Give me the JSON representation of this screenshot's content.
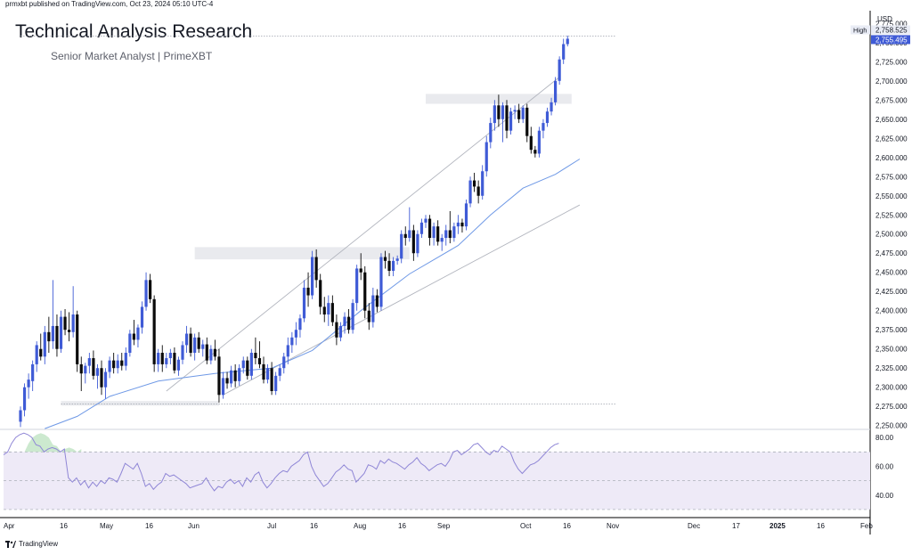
{
  "header": {
    "published": "prmxbt published on TradingView.com, Oct 23, 2024 05:10 UTC-4",
    "title": "Technical Analysis Research",
    "subtitle": "Senior Market Analyst | PrimeXBT"
  },
  "footer": {
    "brand": "TradingView"
  },
  "colors": {
    "up": "#3f5bd6",
    "down": "#0a0a0a",
    "ma": "#6f99e6",
    "trend": "#b2b5be",
    "rsi": "#8f86d6",
    "rsi_band": "#eeeaf7",
    "zone": "#e9eaee"
  },
  "chart_data": [
    {
      "type": "candlestick",
      "currency": "USD",
      "ylim": [
        2245,
        2780
      ],
      "y_ticks": [
        "2,250.000",
        "2,275.000",
        "2,300.000",
        "2,325.000",
        "2,350.000",
        "2,375.000",
        "2,400.000",
        "2,425.000",
        "2,450.000",
        "2,475.000",
        "2,500.000",
        "2,525.000",
        "2,550.000",
        "2,575.000",
        "2,600.000",
        "2,625.000",
        "2,650.000",
        "2,675.000",
        "2,700.000",
        "2,725.000",
        "2,750.000",
        "2,775.000"
      ],
      "x_ticks": [
        "Apr",
        "16",
        "May",
        "16",
        "Jun",
        "Jul",
        "16",
        "Aug",
        "16",
        "Sep",
        "Oct",
        "16",
        "Nov",
        "Dec",
        "17",
        "2025",
        "16",
        "Feb"
      ],
      "high_label": "High",
      "high_value": "2,758.525",
      "last_value": "2,755.495",
      "candles": [
        {
          "o": 2255,
          "h": 2275,
          "l": 2248,
          "c": 2270
        },
        {
          "o": 2270,
          "h": 2305,
          "l": 2262,
          "c": 2300
        },
        {
          "o": 2300,
          "h": 2318,
          "l": 2285,
          "c": 2310
        },
        {
          "o": 2308,
          "h": 2335,
          "l": 2295,
          "c": 2330
        },
        {
          "o": 2330,
          "h": 2360,
          "l": 2320,
          "c": 2355
        },
        {
          "o": 2350,
          "h": 2370,
          "l": 2335,
          "c": 2340
        },
        {
          "o": 2340,
          "h": 2380,
          "l": 2330,
          "c": 2372
        },
        {
          "o": 2372,
          "h": 2392,
          "l": 2345,
          "c": 2360
        },
        {
          "o": 2360,
          "h": 2440,
          "l": 2350,
          "c": 2380
        },
        {
          "o": 2380,
          "h": 2395,
          "l": 2340,
          "c": 2350
        },
        {
          "o": 2350,
          "h": 2400,
          "l": 2345,
          "c": 2392
        },
        {
          "o": 2392,
          "h": 2402,
          "l": 2368,
          "c": 2375
        },
        {
          "o": 2375,
          "h": 2398,
          "l": 2360,
          "c": 2372
        },
        {
          "o": 2372,
          "h": 2432,
          "l": 2365,
          "c": 2395
        },
        {
          "o": 2395,
          "h": 2400,
          "l": 2320,
          "c": 2330
        },
        {
          "o": 2330,
          "h": 2340,
          "l": 2295,
          "c": 2318
        },
        {
          "o": 2318,
          "h": 2332,
          "l": 2305,
          "c": 2328
        },
        {
          "o": 2328,
          "h": 2345,
          "l": 2318,
          "c": 2338
        },
        {
          "o": 2338,
          "h": 2348,
          "l": 2310,
          "c": 2315
        },
        {
          "o": 2315,
          "h": 2330,
          "l": 2298,
          "c": 2325
        },
        {
          "o": 2325,
          "h": 2335,
          "l": 2290,
          "c": 2300
        },
        {
          "o": 2300,
          "h": 2325,
          "l": 2285,
          "c": 2320
        },
        {
          "o": 2320,
          "h": 2340,
          "l": 2312,
          "c": 2335
        },
        {
          "o": 2335,
          "h": 2345,
          "l": 2318,
          "c": 2325
        },
        {
          "o": 2325,
          "h": 2343,
          "l": 2318,
          "c": 2335
        },
        {
          "o": 2335,
          "h": 2345,
          "l": 2322,
          "c": 2328
        },
        {
          "o": 2328,
          "h": 2352,
          "l": 2322,
          "c": 2345
        },
        {
          "o": 2345,
          "h": 2375,
          "l": 2340,
          "c": 2370
        },
        {
          "o": 2370,
          "h": 2388,
          "l": 2355,
          "c": 2362
        },
        {
          "o": 2362,
          "h": 2382,
          "l": 2352,
          "c": 2378
        },
        {
          "o": 2378,
          "h": 2412,
          "l": 2370,
          "c": 2405
        },
        {
          "o": 2405,
          "h": 2450,
          "l": 2400,
          "c": 2440
        },
        {
          "o": 2440,
          "h": 2448,
          "l": 2410,
          "c": 2415
        },
        {
          "o": 2415,
          "h": 2420,
          "l": 2320,
          "c": 2330
        },
        {
          "o": 2330,
          "h": 2350,
          "l": 2320,
          "c": 2345
        },
        {
          "o": 2345,
          "h": 2355,
          "l": 2320,
          "c": 2330
        },
        {
          "o": 2330,
          "h": 2345,
          "l": 2325,
          "c": 2338
        },
        {
          "o": 2338,
          "h": 2350,
          "l": 2330,
          "c": 2345
        },
        {
          "o": 2345,
          "h": 2352,
          "l": 2318,
          "c": 2322
        },
        {
          "o": 2322,
          "h": 2340,
          "l": 2315,
          "c": 2336
        },
        {
          "o": 2336,
          "h": 2360,
          "l": 2330,
          "c": 2355
        },
        {
          "o": 2355,
          "h": 2380,
          "l": 2345,
          "c": 2370
        },
        {
          "o": 2370,
          "h": 2378,
          "l": 2340,
          "c": 2345
        },
        {
          "o": 2345,
          "h": 2370,
          "l": 2335,
          "c": 2365
        },
        {
          "o": 2365,
          "h": 2372,
          "l": 2345,
          "c": 2350
        },
        {
          "o": 2350,
          "h": 2362,
          "l": 2340,
          "c": 2356
        },
        {
          "o": 2356,
          "h": 2365,
          "l": 2330,
          "c": 2335
        },
        {
          "o": 2335,
          "h": 2355,
          "l": 2330,
          "c": 2350
        },
        {
          "o": 2350,
          "h": 2362,
          "l": 2335,
          "c": 2340
        },
        {
          "o": 2340,
          "h": 2350,
          "l": 2280,
          "c": 2290
        },
        {
          "o": 2290,
          "h": 2320,
          "l": 2285,
          "c": 2312
        },
        {
          "o": 2312,
          "h": 2320,
          "l": 2298,
          "c": 2305
        },
        {
          "o": 2305,
          "h": 2328,
          "l": 2300,
          "c": 2322
        },
        {
          "o": 2322,
          "h": 2330,
          "l": 2300,
          "c": 2308
        },
        {
          "o": 2308,
          "h": 2330,
          "l": 2302,
          "c": 2325
        },
        {
          "o": 2325,
          "h": 2340,
          "l": 2318,
          "c": 2335
        },
        {
          "o": 2335,
          "h": 2340,
          "l": 2310,
          "c": 2315
        },
        {
          "o": 2315,
          "h": 2350,
          "l": 2310,
          "c": 2345
        },
        {
          "o": 2345,
          "h": 2365,
          "l": 2330,
          "c": 2338
        },
        {
          "o": 2338,
          "h": 2360,
          "l": 2325,
          "c": 2330
        },
        {
          "o": 2330,
          "h": 2340,
          "l": 2305,
          "c": 2310
        },
        {
          "o": 2310,
          "h": 2330,
          "l": 2305,
          "c": 2325
        },
        {
          "o": 2325,
          "h": 2333,
          "l": 2290,
          "c": 2295
        },
        {
          "o": 2295,
          "h": 2320,
          "l": 2290,
          "c": 2315
        },
        {
          "o": 2315,
          "h": 2330,
          "l": 2308,
          "c": 2325
        },
        {
          "o": 2325,
          "h": 2345,
          "l": 2318,
          "c": 2340
        },
        {
          "o": 2340,
          "h": 2365,
          "l": 2330,
          "c": 2355
        },
        {
          "o": 2355,
          "h": 2372,
          "l": 2345,
          "c": 2365
        },
        {
          "o": 2365,
          "h": 2385,
          "l": 2355,
          "c": 2375
        },
        {
          "o": 2375,
          "h": 2395,
          "l": 2365,
          "c": 2390
        },
        {
          "o": 2390,
          "h": 2440,
          "l": 2385,
          "c": 2430
        },
        {
          "o": 2430,
          "h": 2450,
          "l": 2405,
          "c": 2420
        },
        {
          "o": 2420,
          "h": 2478,
          "l": 2415,
          "c": 2470
        },
        {
          "o": 2470,
          "h": 2480,
          "l": 2430,
          "c": 2440
        },
        {
          "o": 2440,
          "h": 2448,
          "l": 2395,
          "c": 2405
        },
        {
          "o": 2405,
          "h": 2418,
          "l": 2385,
          "c": 2395
        },
        {
          "o": 2395,
          "h": 2420,
          "l": 2380,
          "c": 2410
        },
        {
          "o": 2410,
          "h": 2420,
          "l": 2380,
          "c": 2385
        },
        {
          "o": 2385,
          "h": 2395,
          "l": 2355,
          "c": 2365
        },
        {
          "o": 2365,
          "h": 2385,
          "l": 2360,
          "c": 2380
        },
        {
          "o": 2380,
          "h": 2398,
          "l": 2370,
          "c": 2392
        },
        {
          "o": 2392,
          "h": 2402,
          "l": 2370,
          "c": 2375
        },
        {
          "o": 2375,
          "h": 2415,
          "l": 2370,
          "c": 2410
        },
        {
          "o": 2410,
          "h": 2460,
          "l": 2400,
          "c": 2455
        },
        {
          "o": 2455,
          "h": 2475,
          "l": 2440,
          "c": 2450
        },
        {
          "o": 2450,
          "h": 2458,
          "l": 2390,
          "c": 2400
        },
        {
          "o": 2400,
          "h": 2410,
          "l": 2375,
          "c": 2385
        },
        {
          "o": 2385,
          "h": 2430,
          "l": 2378,
          "c": 2420
        },
        {
          "o": 2420,
          "h": 2428,
          "l": 2398,
          "c": 2405
        },
        {
          "o": 2405,
          "h": 2475,
          "l": 2400,
          "c": 2470
        },
        {
          "o": 2470,
          "h": 2478,
          "l": 2455,
          "c": 2465
        },
        {
          "o": 2465,
          "h": 2475,
          "l": 2445,
          "c": 2452
        },
        {
          "o": 2452,
          "h": 2470,
          "l": 2445,
          "c": 2465
        },
        {
          "o": 2465,
          "h": 2472,
          "l": 2460,
          "c": 2468
        },
        {
          "o": 2468,
          "h": 2505,
          "l": 2462,
          "c": 2500
        },
        {
          "o": 2500,
          "h": 2510,
          "l": 2485,
          "c": 2495
        },
        {
          "o": 2495,
          "h": 2535,
          "l": 2490,
          "c": 2505
        },
        {
          "o": 2505,
          "h": 2512,
          "l": 2465,
          "c": 2475
        },
        {
          "o": 2475,
          "h": 2505,
          "l": 2470,
          "c": 2500
        },
        {
          "o": 2500,
          "h": 2520,
          "l": 2495,
          "c": 2515
        },
        {
          "o": 2515,
          "h": 2525,
          "l": 2508,
          "c": 2520
        },
        {
          "o": 2520,
          "h": 2525,
          "l": 2485,
          "c": 2495
        },
        {
          "o": 2495,
          "h": 2515,
          "l": 2485,
          "c": 2510
        },
        {
          "o": 2510,
          "h": 2518,
          "l": 2485,
          "c": 2490
        },
        {
          "o": 2490,
          "h": 2500,
          "l": 2478,
          "c": 2495
        },
        {
          "o": 2495,
          "h": 2512,
          "l": 2485,
          "c": 2505
        },
        {
          "o": 2505,
          "h": 2530,
          "l": 2488,
          "c": 2495
        },
        {
          "o": 2495,
          "h": 2515,
          "l": 2490,
          "c": 2510
        },
        {
          "o": 2510,
          "h": 2525,
          "l": 2500,
          "c": 2515
        },
        {
          "o": 2515,
          "h": 2520,
          "l": 2502,
          "c": 2510
        },
        {
          "o": 2510,
          "h": 2545,
          "l": 2505,
          "c": 2540
        },
        {
          "o": 2540,
          "h": 2575,
          "l": 2535,
          "c": 2570
        },
        {
          "o": 2570,
          "h": 2580,
          "l": 2555,
          "c": 2562
        },
        {
          "o": 2562,
          "h": 2570,
          "l": 2540,
          "c": 2550
        },
        {
          "o": 2550,
          "h": 2590,
          "l": 2545,
          "c": 2582
        },
        {
          "o": 2582,
          "h": 2628,
          "l": 2575,
          "c": 2620
        },
        {
          "o": 2620,
          "h": 2652,
          "l": 2612,
          "c": 2645
        },
        {
          "o": 2645,
          "h": 2675,
          "l": 2635,
          "c": 2668
        },
        {
          "o": 2668,
          "h": 2682,
          "l": 2640,
          "c": 2650
        },
        {
          "o": 2650,
          "h": 2672,
          "l": 2620,
          "c": 2668
        },
        {
          "o": 2668,
          "h": 2675,
          "l": 2625,
          "c": 2635
        },
        {
          "o": 2635,
          "h": 2665,
          "l": 2630,
          "c": 2660
        },
        {
          "o": 2660,
          "h": 2668,
          "l": 2650,
          "c": 2662
        },
        {
          "o": 2662,
          "h": 2670,
          "l": 2645,
          "c": 2650
        },
        {
          "o": 2650,
          "h": 2668,
          "l": 2645,
          "c": 2665
        },
        {
          "o": 2665,
          "h": 2670,
          "l": 2620,
          "c": 2628
        },
        {
          "o": 2628,
          "h": 2640,
          "l": 2605,
          "c": 2610
        },
        {
          "o": 2610,
          "h": 2615,
          "l": 2600,
          "c": 2605
        },
        {
          "o": 2605,
          "h": 2640,
          "l": 2600,
          "c": 2635
        },
        {
          "o": 2635,
          "h": 2650,
          "l": 2625,
          "c": 2645
        },
        {
          "o": 2645,
          "h": 2665,
          "l": 2640,
          "c": 2660
        },
        {
          "o": 2660,
          "h": 2678,
          "l": 2655,
          "c": 2672
        },
        {
          "o": 2672,
          "h": 2705,
          "l": 2668,
          "c": 2700
        },
        {
          "o": 2700,
          "h": 2732,
          "l": 2695,
          "c": 2728
        },
        {
          "o": 2728,
          "h": 2755,
          "l": 2722,
          "c": 2748
        },
        {
          "o": 2748,
          "h": 2759,
          "l": 2745,
          "c": 2755
        }
      ],
      "moving_average": [
        {
          "i": 6,
          "v": 2246
        },
        {
          "i": 14,
          "v": 2262
        },
        {
          "i": 22,
          "v": 2288
        },
        {
          "i": 34,
          "v": 2308
        },
        {
          "i": 48,
          "v": 2318
        },
        {
          "i": 62,
          "v": 2325
        },
        {
          "i": 72,
          "v": 2348
        },
        {
          "i": 84,
          "v": 2400
        },
        {
          "i": 96,
          "v": 2448
        },
        {
          "i": 108,
          "v": 2485
        },
        {
          "i": 116,
          "v": 2525
        },
        {
          "i": 124,
          "v": 2560
        },
        {
          "i": 132,
          "v": 2578
        },
        {
          "i": 138,
          "v": 2598
        }
      ],
      "support_zones": [
        {
          "i0": 10,
          "i1": 49,
          "low": 2276,
          "high": 2282
        },
        {
          "i0": 43,
          "i1": 96,
          "low": 2467,
          "high": 2483
        },
        {
          "i0": 100,
          "i1": 136,
          "low": 2670,
          "high": 2683
        }
      ],
      "trendlines": [
        {
          "i0": 36,
          "v0": 2295,
          "i1": 133,
          "v1": 2705
        },
        {
          "i0": 50,
          "v0": 2290,
          "i1": 138,
          "v1": 2538
        }
      ],
      "horizontal_levels": [
        {
          "i0": 10,
          "i1": 147,
          "value": 2278
        },
        {
          "i0": 0,
          "i1": 147,
          "value": 2758.525
        }
      ]
    },
    {
      "type": "line",
      "ylim": [
        25,
        85
      ],
      "y_ticks": [
        "80.00",
        "60.00",
        "40.00"
      ],
      "band_upper": 70,
      "band_lower": 30,
      "midline": 50,
      "values": [
        68,
        70,
        76,
        80,
        82,
        83,
        82,
        80,
        75,
        74,
        70,
        72,
        73,
        72,
        70,
        72,
        52,
        49,
        52,
        47,
        50,
        45,
        49,
        46,
        50,
        48,
        52,
        51,
        49,
        55,
        62,
        60,
        58,
        62,
        55,
        46,
        48,
        44,
        47,
        49,
        55,
        53,
        54,
        52,
        50,
        48,
        45,
        46,
        47,
        48,
        52,
        47,
        43,
        46,
        45,
        49,
        51,
        48,
        50,
        46,
        52,
        49,
        54,
        56,
        49,
        45,
        48,
        52,
        55,
        57,
        56,
        60,
        62,
        64,
        68,
        70,
        60,
        54,
        50,
        46,
        48,
        52,
        56,
        58,
        61,
        58,
        57,
        49,
        52,
        55,
        61,
        60,
        58,
        64,
        62,
        65,
        63,
        62,
        60,
        58,
        61,
        63,
        66,
        62,
        60,
        57,
        59,
        61,
        62,
        60,
        64,
        70,
        71,
        68,
        70,
        72,
        75,
        76,
        73,
        70,
        68,
        71,
        70,
        74,
        72,
        70,
        63,
        58,
        55,
        58,
        61,
        62,
        64,
        67,
        70,
        73,
        75,
        76
      ]
    }
  ]
}
